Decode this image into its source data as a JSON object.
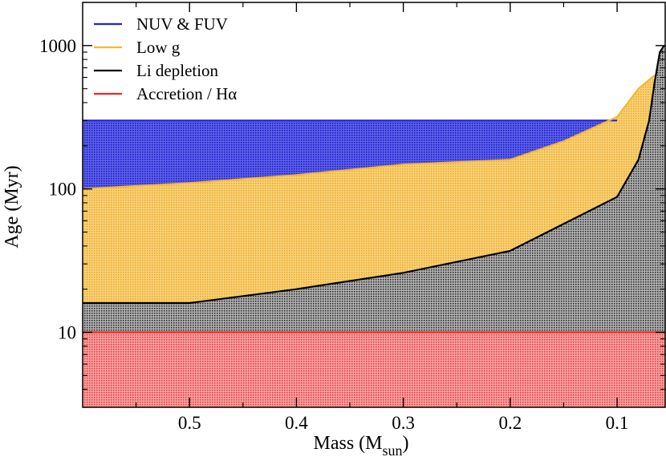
{
  "chart_data": {
    "type": "area",
    "title": "",
    "xlabel_main": "Mass (M",
    "xlabel_sub": "sun",
    "xlabel_close": ")",
    "ylabel": "Age (Myr)",
    "xlim": [
      0.6,
      0.055
    ],
    "x_reversed": true,
    "ylim": [
      3,
      2000
    ],
    "yscale": "log",
    "xticks": [
      0.5,
      0.4,
      0.3,
      0.2,
      0.1
    ],
    "xtick_labels": [
      "0.5",
      "0.4",
      "0.3",
      "0.2",
      "0.1"
    ],
    "yticks": [
      10,
      100,
      1000
    ],
    "ytick_labels": [
      "10",
      "100",
      "1000"
    ],
    "legend_position": "top-left",
    "series": [
      {
        "name": "NUV & FUV",
        "color": "#1e22d8",
        "lower": [
          [
            0.6,
            100
          ],
          [
            0.5,
            110
          ],
          [
            0.4,
            125
          ],
          [
            0.3,
            148
          ],
          [
            0.2,
            160
          ],
          [
            0.15,
            215
          ],
          [
            0.1,
            318
          ],
          [
            0.08,
            500
          ],
          [
            0.065,
            620
          ]
        ],
        "upper": [
          [
            0.6,
            300
          ],
          [
            0.1,
            300
          ]
        ]
      },
      {
        "name": "Low g",
        "color": "#f5b830",
        "lower": [
          [
            0.6,
            16
          ],
          [
            0.5,
            16
          ],
          [
            0.4,
            20
          ],
          [
            0.3,
            26
          ],
          [
            0.2,
            37
          ],
          [
            0.1,
            88
          ],
          [
            0.08,
            160
          ],
          [
            0.07,
            300
          ],
          [
            0.065,
            550
          ]
        ],
        "upper": [
          [
            0.6,
            100
          ],
          [
            0.5,
            110
          ],
          [
            0.4,
            125
          ],
          [
            0.3,
            148
          ],
          [
            0.2,
            160
          ],
          [
            0.15,
            215
          ],
          [
            0.1,
            318
          ],
          [
            0.08,
            500
          ],
          [
            0.065,
            620
          ]
        ]
      },
      {
        "name": "Li depletion",
        "color": "#000000",
        "lower": [
          [
            0.6,
            10
          ],
          [
            0.055,
            10
          ]
        ],
        "upper": [
          [
            0.6,
            16
          ],
          [
            0.5,
            16
          ],
          [
            0.4,
            20
          ],
          [
            0.3,
            26
          ],
          [
            0.2,
            37
          ],
          [
            0.1,
            88
          ],
          [
            0.08,
            160
          ],
          [
            0.07,
            300
          ],
          [
            0.065,
            550
          ],
          [
            0.06,
            900
          ],
          [
            0.056,
            1000
          ]
        ]
      },
      {
        "name": "Accretion / Hα",
        "color": "#ee2a24",
        "lower": [
          [
            0.6,
            3
          ],
          [
            0.055,
            3
          ]
        ],
        "upper": [
          [
            0.6,
            10
          ],
          [
            0.055,
            10
          ]
        ]
      }
    ]
  },
  "legend": [
    {
      "label": "NUV & FUV",
      "color": "#1e22d8"
    },
    {
      "label": "Low g",
      "color": "#f5b830"
    },
    {
      "label": "Li depletion",
      "color": "#000000"
    },
    {
      "label": "Accretion / Hα",
      "color": "#ee2a24"
    }
  ]
}
